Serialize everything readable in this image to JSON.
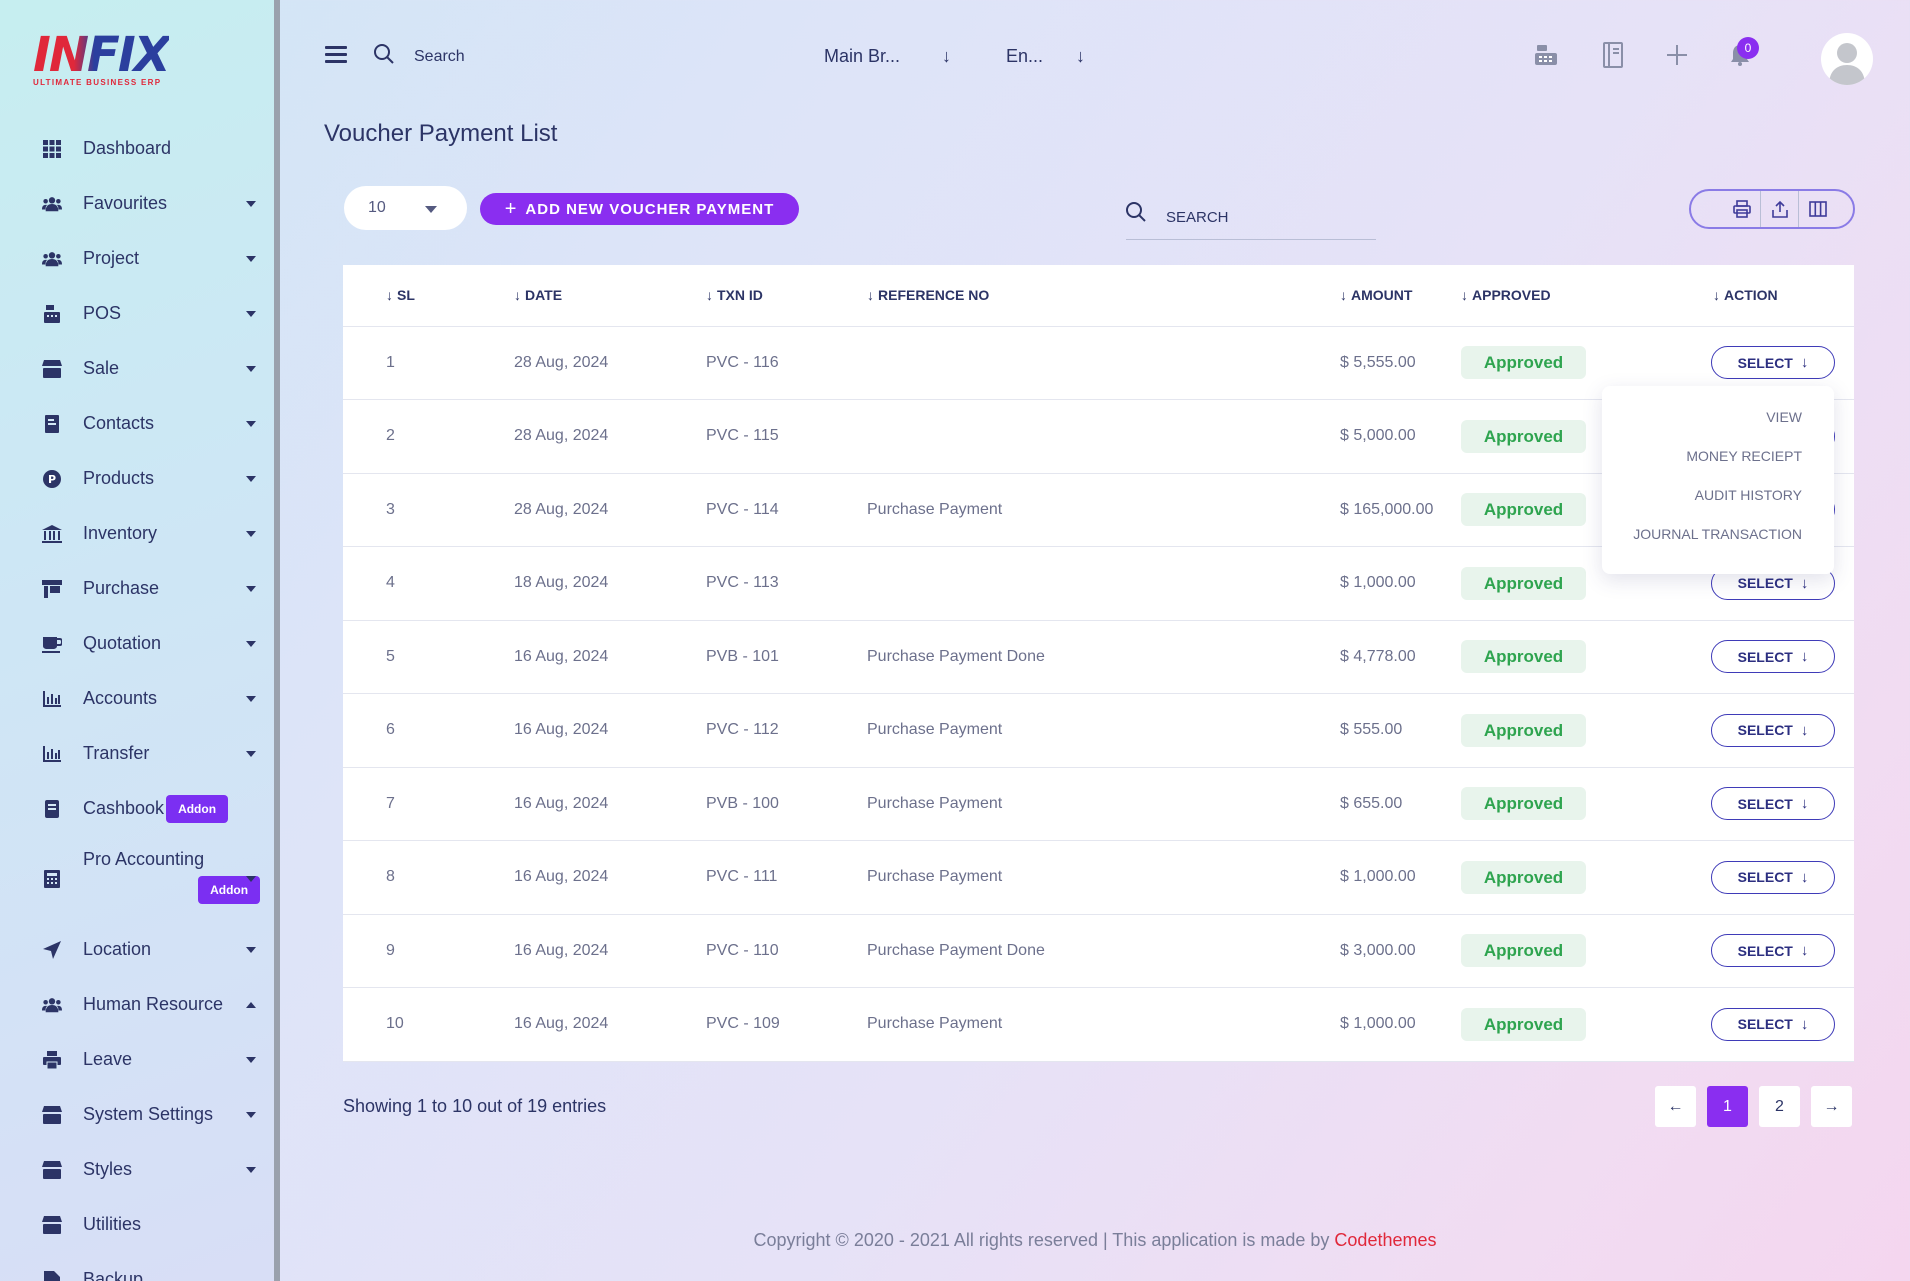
{
  "brand": {
    "logo_text": "INFIX",
    "logo_sub": "ULTIMATE BUSINESS ERP"
  },
  "sidebar": {
    "items": [
      {
        "label": "Dashboard",
        "icon": "grid-icon",
        "caret": ""
      },
      {
        "label": "Favourites",
        "icon": "users-icon",
        "caret": "down"
      },
      {
        "label": "Project",
        "icon": "users-icon",
        "caret": "down"
      },
      {
        "label": "POS",
        "icon": "cash-register-icon",
        "caret": "down"
      },
      {
        "label": "Sale",
        "icon": "store-icon",
        "caret": "down"
      },
      {
        "label": "Contacts",
        "icon": "contact-book-icon",
        "caret": "down"
      },
      {
        "label": "Products",
        "icon": "product-icon",
        "caret": "down"
      },
      {
        "label": "Inventory",
        "icon": "bank-icon",
        "caret": "down"
      },
      {
        "label": "Purchase",
        "icon": "purchase-icon",
        "caret": "down"
      },
      {
        "label": "Quotation",
        "icon": "coffee-icon",
        "caret": "down"
      },
      {
        "label": "Accounts",
        "icon": "bar-chart-icon",
        "caret": "down"
      },
      {
        "label": "Transfer",
        "icon": "bar-chart-icon",
        "caret": "down"
      },
      {
        "label": "Cashbook",
        "icon": "book-icon",
        "caret": "",
        "badge": "Addon"
      },
      {
        "label": "Pro Accounting",
        "icon": "calculator-icon",
        "caret": "down",
        "badge": "Addon"
      },
      {
        "label": "Location",
        "icon": "location-arrow-icon",
        "caret": "down"
      },
      {
        "label": "Human Resource",
        "icon": "users-icon",
        "caret": "up"
      },
      {
        "label": "Leave",
        "icon": "printer-icon",
        "caret": "down"
      },
      {
        "label": "System Settings",
        "icon": "store-icon",
        "caret": "down"
      },
      {
        "label": "Styles",
        "icon": "store-icon",
        "caret": "down"
      },
      {
        "label": "Utilities",
        "icon": "store-icon",
        "caret": ""
      },
      {
        "label": "Backup",
        "icon": "file-icon",
        "caret": ""
      }
    ]
  },
  "topbar": {
    "search_placeholder": "Search",
    "branch_value": "Main Br...",
    "language_value": "En...",
    "notification_count": "0"
  },
  "page": {
    "title": "Voucher Payment List",
    "per_page": "10",
    "add_button": "ADD NEW VOUCHER PAYMENT",
    "search_placeholder": "SEARCH"
  },
  "table": {
    "headers": [
      "SL",
      "DATE",
      "TXN ID",
      "REFERENCE NO",
      "AMOUNT",
      "APPROVED",
      "ACTION"
    ],
    "select_label": "SELECT",
    "rows": [
      {
        "sl": "1",
        "date": "28 Aug, 2024",
        "txn": "PVC - 116",
        "ref": "",
        "amount": "$ 5,555.00",
        "status": "Approved"
      },
      {
        "sl": "2",
        "date": "28 Aug, 2024",
        "txn": "PVC - 115",
        "ref": "",
        "amount": "$ 5,000.00",
        "status": "Approved"
      },
      {
        "sl": "3",
        "date": "28 Aug, 2024",
        "txn": "PVC - 114",
        "ref": "Purchase Payment",
        "amount": "$ 165,000.00",
        "status": "Approved"
      },
      {
        "sl": "4",
        "date": "18 Aug, 2024",
        "txn": "PVC - 113",
        "ref": "",
        "amount": "$ 1,000.00",
        "status": "Approved"
      },
      {
        "sl": "5",
        "date": "16 Aug, 2024",
        "txn": "PVB - 101",
        "ref": "Purchase Payment Done",
        "amount": "$ 4,778.00",
        "status": "Approved"
      },
      {
        "sl": "6",
        "date": "16 Aug, 2024",
        "txn": "PVC - 112",
        "ref": "Purchase Payment",
        "amount": "$ 555.00",
        "status": "Approved"
      },
      {
        "sl": "7",
        "date": "16 Aug, 2024",
        "txn": "PVB - 100",
        "ref": "Purchase Payment",
        "amount": "$ 655.00",
        "status": "Approved"
      },
      {
        "sl": "8",
        "date": "16 Aug, 2024",
        "txn": "PVC - 111",
        "ref": "Purchase Payment",
        "amount": "$ 1,000.00",
        "status": "Approved"
      },
      {
        "sl": "9",
        "date": "16 Aug, 2024",
        "txn": "PVC - 110",
        "ref": "Purchase Payment Done",
        "amount": "$ 3,000.00",
        "status": "Approved"
      },
      {
        "sl": "10",
        "date": "16 Aug, 2024",
        "txn": "PVC - 109",
        "ref": "Purchase Payment",
        "amount": "$ 1,000.00",
        "status": "Approved"
      }
    ]
  },
  "dropdown": {
    "items": [
      "VIEW",
      "MONEY RECIEPT",
      "AUDIT HISTORY",
      "JOURNAL TRANSACTION"
    ]
  },
  "pagination": {
    "summary": "Showing 1 to 10 out of 19 entries",
    "prev": "←",
    "pages": [
      "1",
      "2"
    ],
    "next": "→"
  },
  "footer": {
    "text": "Copyright © 2020 - 2021 All rights reserved | This application is made by ",
    "brand": "Codethemes"
  },
  "colors": {
    "accent": "#8a2ef0",
    "brand_red": "#e0283a",
    "brand_blue": "#2b3f9e",
    "approved_green": "#2ea44f"
  }
}
